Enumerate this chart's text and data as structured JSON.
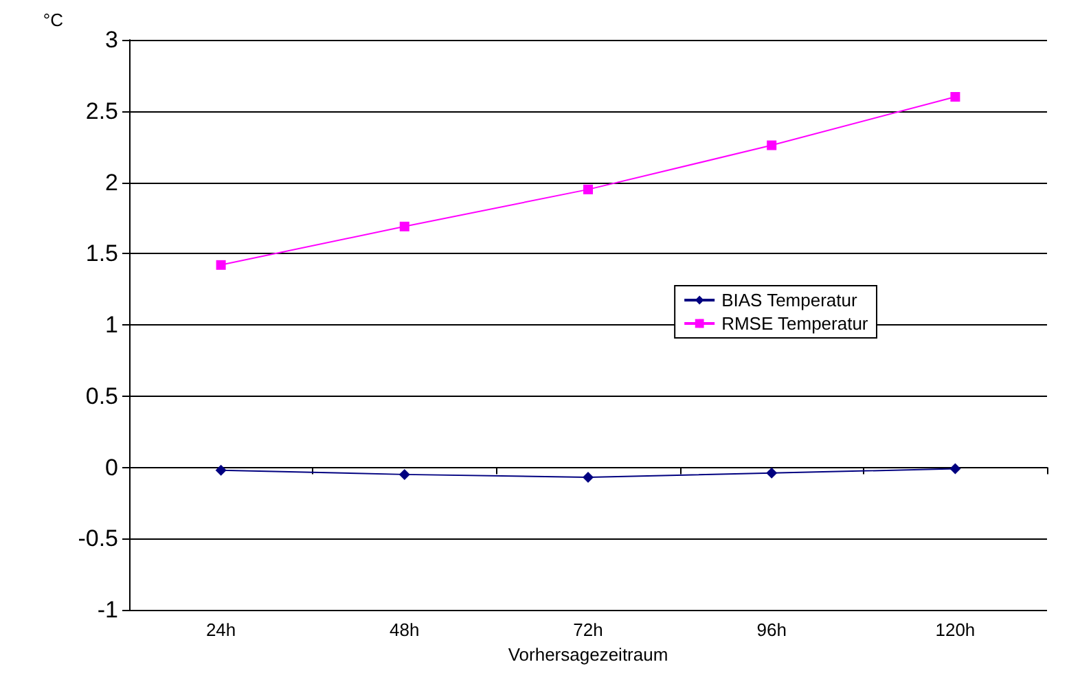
{
  "chart_data": {
    "type": "line",
    "categories": [
      "24h",
      "48h",
      "72h",
      "96h",
      "120h"
    ],
    "xlabel": "Vorhersagezeitraum",
    "ylabel": "°C",
    "ylim": [
      -1,
      3
    ],
    "yticks": [
      -1,
      -0.5,
      0,
      0.5,
      1,
      1.5,
      2,
      2.5,
      3
    ],
    "grid": "y",
    "legend": "right",
    "series": [
      {
        "name": "BIAS Temperatur",
        "color": "#000080",
        "marker": "diamond",
        "values": [
          -0.02,
          -0.05,
          -0.07,
          -0.04,
          -0.01
        ]
      },
      {
        "name": "RMSE Temperatur",
        "color": "#ff00ff",
        "marker": "square",
        "values": [
          1.42,
          1.69,
          1.95,
          2.26,
          2.6
        ]
      }
    ]
  }
}
